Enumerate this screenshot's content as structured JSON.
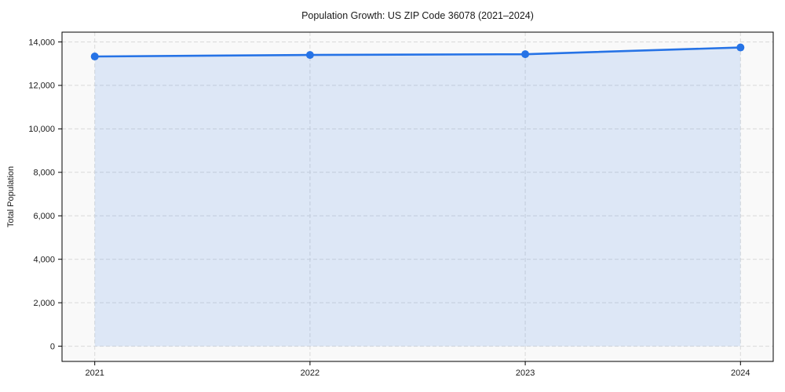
{
  "chart_data": {
    "type": "line",
    "title": "Population Growth: US ZIP Code 36078 (2021–2024)",
    "xlabel": "",
    "ylabel": "Total Population",
    "categories": [
      "2021",
      "2022",
      "2023",
      "2024"
    ],
    "series": [
      {
        "name": "Total Population",
        "values": [
          13330,
          13400,
          13435,
          13745
        ]
      }
    ],
    "yticks": [
      0,
      2000,
      4000,
      6000,
      8000,
      10000,
      12000,
      14000
    ],
    "ytick_labels": [
      "0",
      "2,000",
      "4,000",
      "6,000",
      "8,000",
      "10,000",
      "12,000",
      "14,000"
    ],
    "ylim": [
      -700,
      14450
    ],
    "grid": true,
    "grid_style": "dashed",
    "legend": "none",
    "markers": "circle",
    "area_fill_baseline": 0,
    "colors": {
      "line": "#2673e6",
      "marker": "#2673e6",
      "area_fill": "rgba(38,115,230,0.13)",
      "plot_background": "#f9f9f9",
      "figure_background": "#ffffff",
      "grid": "#d9d9d9",
      "spine": "#000000",
      "text": "#1a1a1a"
    }
  }
}
